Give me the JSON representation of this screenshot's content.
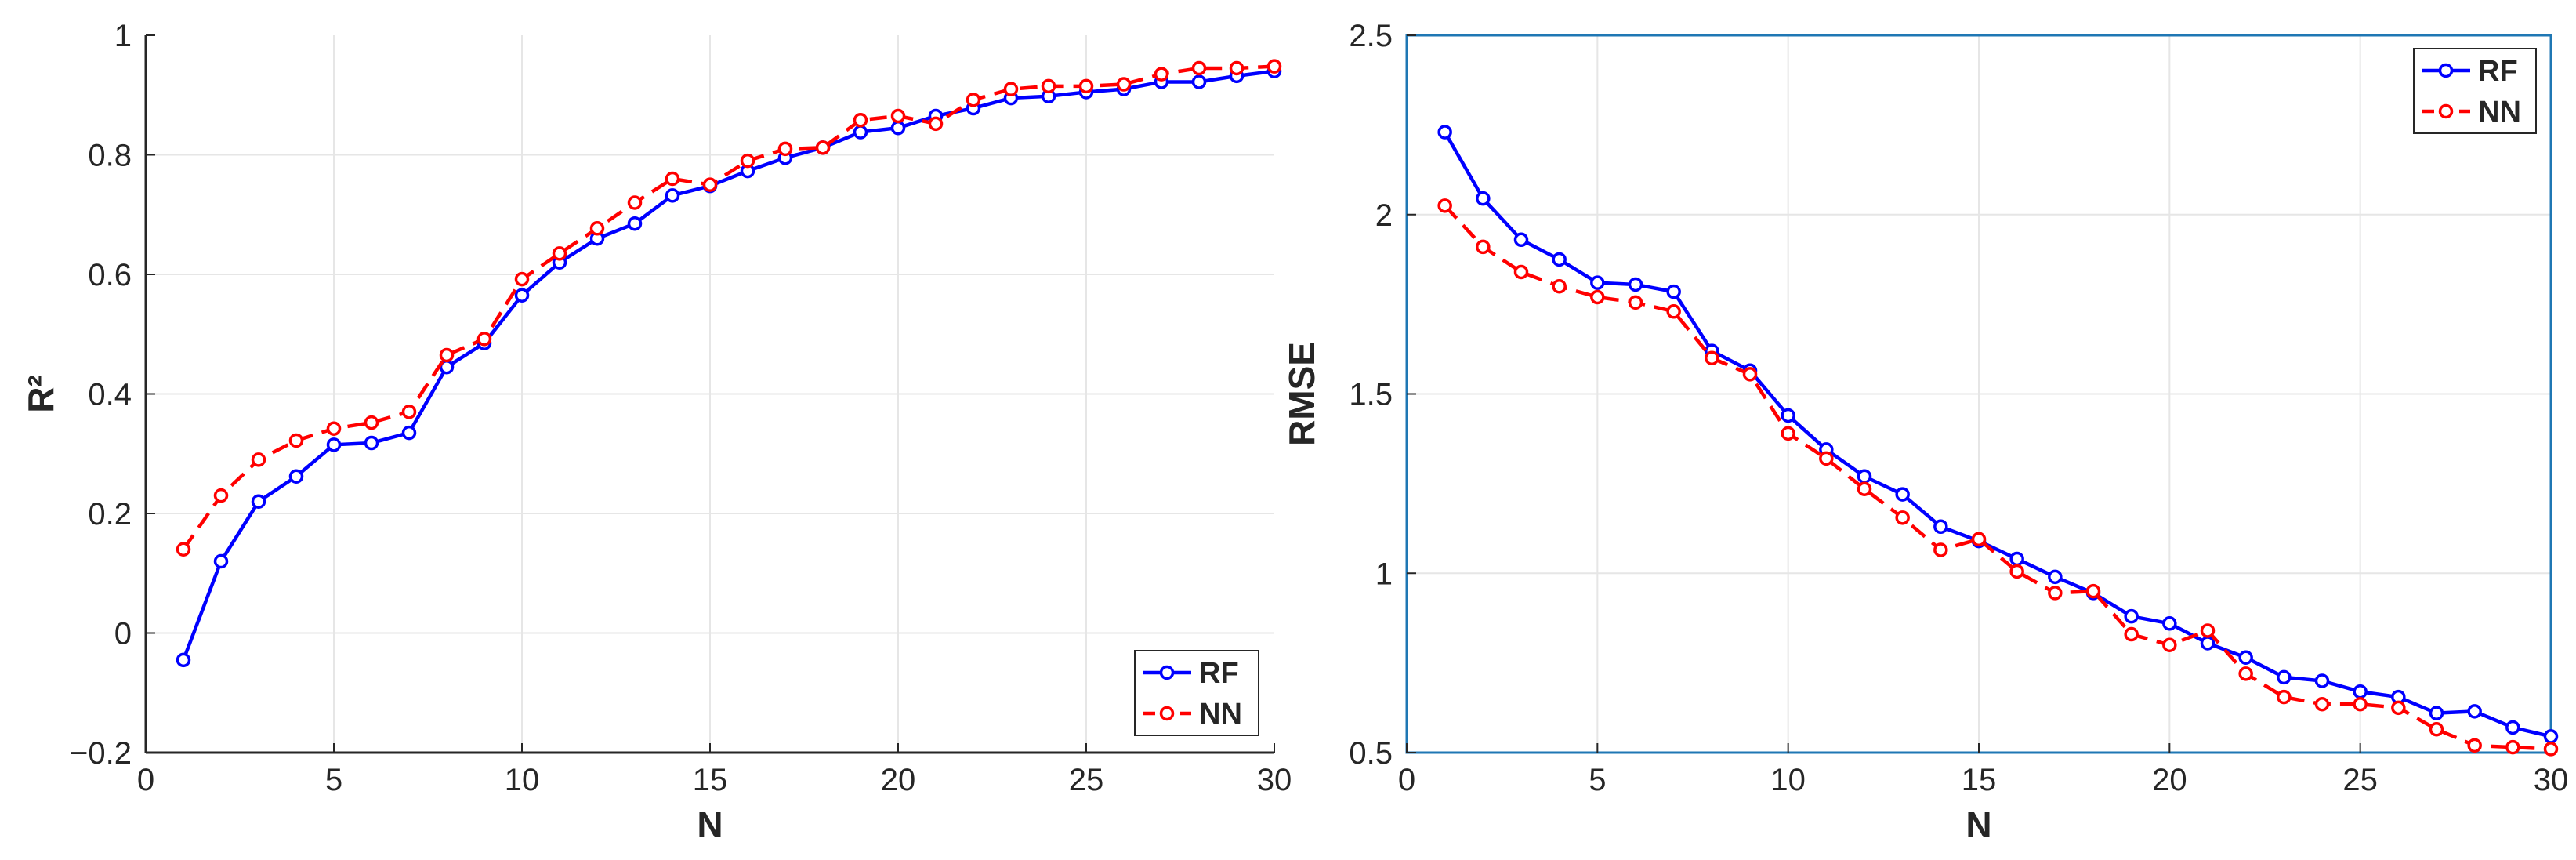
{
  "chart_data": [
    {
      "type": "line",
      "xlabel": "N",
      "ylabel": "R²",
      "xlim": [
        0,
        30
      ],
      "ylim": [
        -0.2,
        1
      ],
      "xticks": [
        0,
        5,
        10,
        15,
        20,
        25,
        30
      ],
      "yticks": [
        -0.2,
        0,
        0.2,
        0.4,
        0.6,
        0.8,
        1
      ],
      "ytick_labels": [
        "−0.2",
        "0",
        "0.2",
        "0.4",
        "0.6",
        "0.8",
        "1"
      ],
      "grid": true,
      "box": false,
      "legend_position": "bottom-right",
      "x": [
        1,
        2,
        3,
        4,
        5,
        6,
        7,
        8,
        9,
        10,
        11,
        12,
        13,
        14,
        15,
        16,
        17,
        18,
        19,
        20,
        21,
        22,
        23,
        24,
        25,
        26,
        27,
        28,
        29,
        30
      ],
      "series": [
        {
          "name": "RF",
          "color": "#0000ff",
          "line_style": "solid",
          "marker": "circle",
          "values": [
            -0.045,
            0.12,
            0.22,
            0.262,
            0.315,
            0.318,
            0.335,
            0.445,
            0.485,
            0.565,
            0.62,
            0.66,
            0.685,
            0.732,
            0.748,
            0.773,
            0.795,
            0.812,
            0.838,
            0.845,
            0.865,
            0.878,
            0.895,
            0.898,
            0.905,
            0.91,
            0.922,
            0.922,
            0.932,
            0.94
          ]
        },
        {
          "name": "NN",
          "color": "#ff0000",
          "line_style": "dashed",
          "marker": "circle",
          "values": [
            0.14,
            0.23,
            0.29,
            0.322,
            0.342,
            0.352,
            0.37,
            0.465,
            0.492,
            0.592,
            0.635,
            0.677,
            0.72,
            0.76,
            0.75,
            0.79,
            0.81,
            0.812,
            0.858,
            0.865,
            0.852,
            0.892,
            0.91,
            0.915,
            0.915,
            0.918,
            0.935,
            0.945,
            0.945,
            0.948
          ]
        }
      ]
    },
    {
      "type": "line",
      "xlabel": "N",
      "ylabel": "RMSE",
      "xlim": [
        0,
        30
      ],
      "ylim": [
        0.5,
        2.5
      ],
      "xticks": [
        0,
        5,
        10,
        15,
        20,
        25,
        30
      ],
      "yticks": [
        0.5,
        1,
        1.5,
        2,
        2.5
      ],
      "ytick_labels": [
        "0.5",
        "1",
        "1.5",
        "2",
        "2.5"
      ],
      "grid": true,
      "box": true,
      "legend_position": "top-right",
      "x": [
        1,
        2,
        3,
        4,
        5,
        6,
        7,
        8,
        9,
        10,
        11,
        12,
        13,
        14,
        15,
        16,
        17,
        18,
        19,
        20,
        21,
        22,
        23,
        24,
        25,
        26,
        27,
        28,
        29,
        30
      ],
      "series": [
        {
          "name": "RF",
          "color": "#0000ff",
          "line_style": "solid",
          "marker": "circle",
          "values": [
            2.23,
            2.045,
            1.93,
            1.875,
            1.81,
            1.805,
            1.785,
            1.62,
            1.565,
            1.44,
            1.345,
            1.27,
            1.22,
            1.13,
            1.09,
            1.04,
            0.99,
            0.945,
            0.88,
            0.86,
            0.805,
            0.765,
            0.71,
            0.7,
            0.67,
            0.655,
            0.61,
            0.615,
            0.57,
            0.545
          ]
        },
        {
          "name": "NN",
          "color": "#ff0000",
          "line_style": "dashed",
          "marker": "circle",
          "values": [
            2.025,
            1.91,
            1.84,
            1.8,
            1.77,
            1.755,
            1.73,
            1.6,
            1.555,
            1.39,
            1.32,
            1.235,
            1.155,
            1.065,
            1.095,
            1.005,
            0.945,
            0.95,
            0.83,
            0.8,
            0.84,
            0.72,
            0.655,
            0.635,
            0.635,
            0.625,
            0.565,
            0.52,
            0.515,
            0.51
          ]
        }
      ]
    }
  ]
}
